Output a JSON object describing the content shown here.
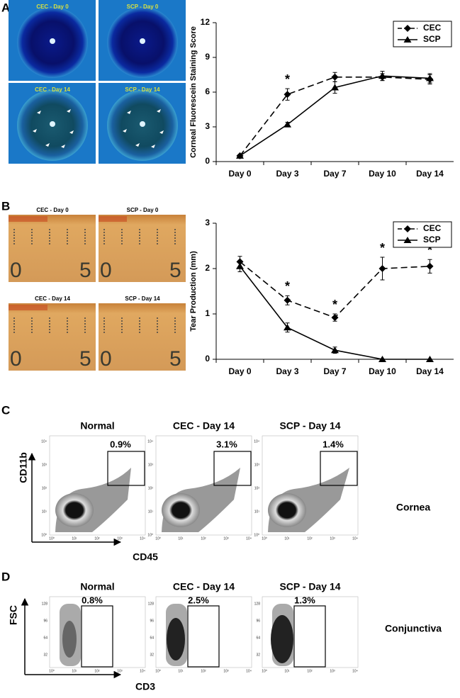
{
  "panel_labels": [
    "A",
    "B",
    "C",
    "D"
  ],
  "chart_data": [
    {
      "type": "line",
      "y_label": "Corneal Fluorescein Staining Score",
      "categories": [
        "Day 0",
        "Day 3",
        "Day 7",
        "Day 10",
        "Day 14"
      ],
      "ylim": [
        0,
        12
      ],
      "yticks": [
        0,
        3,
        6,
        9,
        12
      ],
      "legend": "top-right",
      "series": [
        {
          "name": "CEC",
          "color": "#000000",
          "line_style": "dashed",
          "marker": "diamond",
          "values": [
            0.5,
            5.8,
            7.3,
            7.3,
            7.1
          ],
          "errors": [
            0.1,
            0.5,
            0.4,
            0.3,
            0.4
          ]
        },
        {
          "name": "SCP",
          "color": "#000000",
          "line_style": "solid",
          "marker": "triangle",
          "values": [
            0.5,
            3.2,
            6.4,
            7.4,
            7.2
          ],
          "errors": [
            0.1,
            0.2,
            0.5,
            0.4,
            0.4
          ]
        }
      ],
      "annotations": [
        {
          "text": "*",
          "category": "Day 3"
        }
      ]
    },
    {
      "type": "line",
      "y_label": "Tear Production (mm)",
      "categories": [
        "Day 0",
        "Day 3",
        "Day 7",
        "Day 10",
        "Day 14"
      ],
      "ylim": [
        0,
        3
      ],
      "yticks": [
        0,
        1,
        2,
        3
      ],
      "legend": "top-right",
      "series": [
        {
          "name": "CEC",
          "color": "#000000",
          "line_style": "dashed",
          "marker": "diamond",
          "values": [
            2.15,
            1.3,
            0.92,
            2.0,
            2.05
          ],
          "errors": [
            0.12,
            0.1,
            0.08,
            0.25,
            0.15
          ]
        },
        {
          "name": "SCP",
          "color": "#000000",
          "line_style": "solid",
          "marker": "triangle",
          "values": [
            2.05,
            0.7,
            0.2,
            0,
            0
          ],
          "errors": [
            0.12,
            0.1,
            0.07,
            0,
            0
          ]
        }
      ],
      "annotations": [
        {
          "text": "*",
          "category": "Day 3"
        },
        {
          "text": "*",
          "category": "Day 7"
        },
        {
          "text": "*",
          "category": "Day 10"
        },
        {
          "text": "*",
          "category": "Day 14"
        }
      ]
    }
  ],
  "eye_photos": [
    "CEC - Day 0",
    "SCP - Day 0",
    "CEC - Day 14",
    "SCP - Day 14"
  ],
  "tear_photos": [
    "CEC - Day 0",
    "SCP - Day 0",
    "CEC - Day 14",
    "SCP - Day 14"
  ],
  "ruler_labels": [
    "0",
    "5"
  ],
  "flow_cornea": {
    "titles": [
      "Normal",
      "CEC - Day 14",
      "SCP - Day 14"
    ],
    "gates": [
      "0.9%",
      "3.1%",
      "1.4%"
    ],
    "y_label": "CD11b",
    "x_label": "CD45",
    "tissue": "Cornea",
    "ticks": [
      "10⁰",
      "10¹",
      "10²",
      "10³",
      "10⁴"
    ]
  },
  "flow_conjunctiva": {
    "titles": [
      "Normal",
      "CEC - Day 14",
      "SCP - Day 14"
    ],
    "gates": [
      "0.8%",
      "2.5%",
      "1.3%"
    ],
    "y_label": "FSC",
    "x_label": "CD3",
    "tissue": "Conjunctiva",
    "yticks": [
      "32",
      "64",
      "96",
      "128"
    ],
    "xticks": [
      "10⁰",
      "10¹",
      "10²",
      "10³",
      "10⁴"
    ]
  }
}
